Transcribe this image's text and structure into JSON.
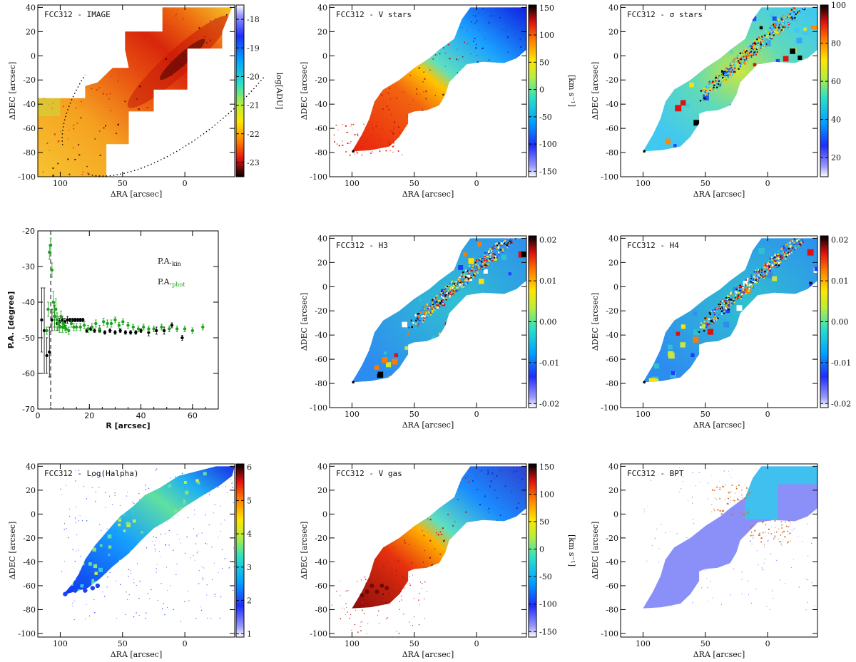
{
  "chart_data": [
    {
      "id": "image",
      "type": "heatmap",
      "title": "FCC312 - IMAGE",
      "xlabel": "ΔRA [arcsec]",
      "ylabel": "ΔDEC [arcsec]",
      "xlim": [
        118,
        -40
      ],
      "ylim": [
        -100,
        42
      ],
      "xticks": [
        "100",
        "50",
        "0"
      ],
      "xtickvals": [
        100,
        50,
        0
      ],
      "yticks": [
        "-100",
        "-80",
        "-60",
        "-40",
        "-20",
        "0",
        "20",
        "40"
      ],
      "ytickvals": [
        -100,
        -80,
        -60,
        -40,
        -20,
        0,
        20,
        40
      ],
      "colorbar": {
        "label": "log[ADU]",
        "range": [
          -23.5,
          -17.5
        ],
        "ticks": [
          "-18",
          "-19",
          "-20",
          "-21",
          "-22",
          "-23"
        ],
        "tickvals": [
          -18,
          -19,
          -20,
          -21,
          -22,
          -23
        ],
        "reverse": true,
        "cmap": "jet"
      }
    },
    {
      "id": "vstars",
      "type": "heatmap",
      "title": "FCC312 - V stars",
      "xlabel": "ΔRA [arcsec]",
      "ylabel": "ΔDEC [arcsec]",
      "xlim": [
        118,
        -40
      ],
      "ylim": [
        -100,
        42
      ],
      "xticks": [
        "100",
        "50",
        "0"
      ],
      "xtickvals": [
        100,
        50,
        0
      ],
      "yticks": [
        "-100",
        "-80",
        "-60",
        "-40",
        "-20",
        "0",
        "20",
        "40"
      ],
      "ytickvals": [
        -100,
        -80,
        -60,
        -40,
        -20,
        0,
        20,
        40
      ],
      "colorbar": {
        "label": "[km s⁻¹]",
        "range": [
          -160,
          155
        ],
        "ticks": [
          "150",
          "100",
          "50",
          "0",
          "-50",
          "-100",
          "-150"
        ],
        "tickvals": [
          150,
          100,
          50,
          0,
          -50,
          -100,
          -150
        ],
        "reverse": false,
        "cmap": "jet"
      }
    },
    {
      "id": "sigstars",
      "type": "heatmap",
      "title": "FCC312 - σ stars",
      "xlabel": "ΔRA [arcsec]",
      "ylabel": "ΔDEC [arcsec]",
      "xlim": [
        118,
        -40
      ],
      "ylim": [
        -100,
        42
      ],
      "xticks": [
        "100",
        "50",
        "0"
      ],
      "xtickvals": [
        100,
        50,
        0
      ],
      "yticks": [
        "-100",
        "-80",
        "-60",
        "-40",
        "-20",
        "0",
        "20",
        "40"
      ],
      "ytickvals": [
        -100,
        -80,
        -60,
        -40,
        -20,
        0,
        20,
        40
      ],
      "colorbar": {
        "label": "[km s⁻¹]",
        "range": [
          10,
          100
        ],
        "ticks": [
          "100",
          "80",
          "60",
          "40",
          "20"
        ],
        "tickvals": [
          100,
          80,
          60,
          40,
          20
        ],
        "reverse": false,
        "cmap": "jet"
      }
    },
    {
      "id": "pa",
      "type": "scatter",
      "xlabel": "R [arcsec]",
      "ylabel": "P.A. [degree]",
      "xlim": [
        0,
        70
      ],
      "ylim": [
        -70,
        -20
      ],
      "xticks": [
        "0",
        "20",
        "40",
        "60"
      ],
      "xtickvals": [
        0,
        20,
        40,
        60
      ],
      "yticks": [
        "-70",
        "-60",
        "-50",
        "-40",
        "-30",
        "-20"
      ],
      "ytickvals": [
        -70,
        -60,
        -50,
        -40,
        -30,
        -20
      ],
      "vline": 5,
      "legend": [
        {
          "label": "P.A.",
          "sub": "kin",
          "color": "#000000"
        },
        {
          "label": "P.A.",
          "sub": "phot",
          "color": "#19a319"
        }
      ],
      "series": [
        {
          "name": "P.A.kin",
          "color": "#000000",
          "x": [
            1.5,
            2.5,
            3.5,
            4.5,
            5.5,
            6.5,
            7.5,
            8.5,
            9.5,
            10.5,
            11.5,
            12.5,
            13.5,
            14.5,
            15.5,
            16.5,
            17.5,
            19,
            20.5,
            22,
            24,
            26,
            28,
            30,
            32,
            34,
            36,
            38,
            40,
            43,
            46,
            49,
            52,
            56
          ],
          "y": [
            -45,
            -48,
            -55,
            -54,
            -45,
            -44,
            -46,
            -45.5,
            -45,
            -45.5,
            -45,
            -45,
            -45,
            -45,
            -45,
            -45,
            -45,
            -48,
            -47.5,
            -48,
            -48,
            -48.5,
            -48,
            -48.5,
            -48,
            -48.5,
            -48.5,
            -48.5,
            -48,
            -48.5,
            -48,
            -48,
            -46.5,
            -50
          ],
          "err": [
            9,
            12,
            5,
            7,
            3,
            3,
            2,
            1,
            1,
            1,
            1,
            0.5,
            0.5,
            0.5,
            0.5,
            0.5,
            0.5,
            0.5,
            0.5,
            0.5,
            0.5,
            0.5,
            0.5,
            0.5,
            0.5,
            0.5,
            0.5,
            0.5,
            0.5,
            1,
            1,
            1,
            0.7,
            0.7
          ]
        },
        {
          "name": "P.A.phot",
          "color": "#19a319",
          "x": [
            3.5,
            4,
            4.5,
            5,
            5.5,
            6,
            6.5,
            7,
            7.5,
            8,
            8.5,
            9,
            9.5,
            10,
            10.5,
            11,
            12,
            13,
            14,
            15,
            16.5,
            18,
            19.5,
            21,
            22.5,
            24,
            25.5,
            27,
            28.5,
            30,
            31.5,
            33,
            35,
            37,
            39,
            41,
            43,
            45,
            48,
            51,
            54,
            57,
            60,
            64
          ],
          "y": [
            -48,
            -42,
            -26,
            -24,
            -31,
            -40,
            -44,
            -42,
            -45,
            -46,
            -47,
            -44,
            -47,
            -46,
            -47,
            -47.5,
            -48,
            -46,
            -47,
            -47,
            -47,
            -46.5,
            -47.5,
            -47,
            -46,
            -47.5,
            -45.5,
            -46,
            -46,
            -45,
            -46.5,
            -45.5,
            -46.5,
            -47,
            -47.5,
            -47,
            -47.5,
            -47.5,
            -47,
            -47.5,
            -47.5,
            -47.5,
            -48,
            -47
          ],
          "err": [
            1,
            2,
            2,
            2,
            2,
            3,
            4,
            3,
            2,
            2,
            1.5,
            1.5,
            1.5,
            1.5,
            1,
            1,
            1,
            1,
            1,
            1,
            1,
            1,
            1,
            1,
            1,
            1,
            1,
            1,
            1,
            0.8,
            0.8,
            0.8,
            0.8,
            0.8,
            0.8,
            0.8,
            0.8,
            0.8,
            0.8,
            0.8,
            0.8,
            0.8,
            0.8,
            0.8
          ]
        }
      ]
    },
    {
      "id": "h3",
      "type": "heatmap",
      "title": "FCC312 - H3",
      "xlabel": "ΔRA [arcsec]",
      "ylabel": "ΔDEC [arcsec]",
      "xlim": [
        118,
        -40
      ],
      "ylim": [
        -100,
        42
      ],
      "xticks": [
        "100",
        "50",
        "0"
      ],
      "xtickvals": [
        100,
        50,
        0
      ],
      "yticks": [
        "-100",
        "-80",
        "-60",
        "-40",
        "-20",
        "0",
        "20",
        "40"
      ],
      "ytickvals": [
        -100,
        -80,
        -60,
        -40,
        -20,
        0,
        20,
        40
      ],
      "colorbar": {
        "label": "",
        "range": [
          -0.021,
          0.021
        ],
        "ticks": [
          "0.02",
          "0.01",
          "0.00",
          "-0.01",
          "-0.02"
        ],
        "tickvals": [
          0.02,
          0.01,
          0,
          -0.01,
          -0.02
        ],
        "reverse": false,
        "cmap": "jet"
      }
    },
    {
      "id": "h4",
      "type": "heatmap",
      "title": "FCC312 - H4",
      "xlabel": "ΔRA [arcsec]",
      "ylabel": "ΔDEC [arcsec]",
      "xlim": [
        118,
        -40
      ],
      "ylim": [
        -100,
        42
      ],
      "xticks": [
        "100",
        "50",
        "0"
      ],
      "xtickvals": [
        100,
        50,
        0
      ],
      "yticks": [
        "-100",
        "-80",
        "-60",
        "-40",
        "-20",
        "0",
        "20",
        "40"
      ],
      "ytickvals": [
        -100,
        -80,
        -60,
        -40,
        -20,
        0,
        20,
        40
      ],
      "colorbar": {
        "label": "",
        "range": [
          -0.021,
          0.021
        ],
        "ticks": [
          "0.02",
          "0.01",
          "0.00",
          "-0.01",
          "-0.02"
        ],
        "tickvals": [
          0.02,
          0.01,
          0,
          -0.01,
          -0.02
        ],
        "reverse": false,
        "cmap": "jet"
      }
    },
    {
      "id": "halpha",
      "type": "heatmap",
      "title": "FCC312 - Log(Halpha)",
      "xlabel": "ΔRA [arcsec]",
      "ylabel": "ΔDEC [arcsec]",
      "xlim": [
        118,
        -40
      ],
      "ylim": [
        -103,
        42
      ],
      "xticks": [
        "100",
        "50",
        "0"
      ],
      "xtickvals": [
        100,
        50,
        0
      ],
      "yticks": [
        "-100",
        "-80",
        "-60",
        "-40",
        "-20",
        "0",
        "20",
        "40"
      ],
      "ytickvals": [
        -100,
        -80,
        -60,
        -40,
        -20,
        0,
        20,
        40
      ],
      "colorbar": {
        "label": "",
        "range": [
          0.9,
          6.1
        ],
        "ticks": [
          "6",
          "5",
          "4",
          "3",
          "2",
          "1"
        ],
        "tickvals": [
          6,
          5,
          4,
          3,
          2,
          1
        ],
        "reverse": false,
        "cmap": "jet"
      }
    },
    {
      "id": "vgas",
      "type": "heatmap",
      "title": "FCC312 - V gas",
      "xlabel": "ΔRA [arcsec]",
      "ylabel": "ΔDEC [arcsec]",
      "xlim": [
        118,
        -40
      ],
      "ylim": [
        -103,
        42
      ],
      "xticks": [
        "100",
        "50",
        "0"
      ],
      "xtickvals": [
        100,
        50,
        0
      ],
      "yticks": [
        "-100",
        "-80",
        "-60",
        "-40",
        "-20",
        "0",
        "20",
        "40"
      ],
      "ytickvals": [
        -100,
        -80,
        -60,
        -40,
        -20,
        0,
        20,
        40
      ],
      "colorbar": {
        "label": "[km s⁻¹]",
        "range": [
          -160,
          155
        ],
        "ticks": [
          "150",
          "100",
          "50",
          "0",
          "-50",
          "-100",
          "-150"
        ],
        "tickvals": [
          150,
          100,
          50,
          0,
          -50,
          -100,
          -150
        ],
        "reverse": false,
        "cmap": "jet"
      }
    },
    {
      "id": "bpt",
      "type": "heatmap",
      "title": "FCC312 - BPT",
      "xlabel": "ΔRA [arcsec]",
      "ylabel": "ΔDEC [arcsec]",
      "xlim": [
        118,
        -40
      ],
      "ylim": [
        -103,
        42
      ],
      "xticks": [
        "100",
        "50",
        "0"
      ],
      "xtickvals": [
        100,
        50,
        0
      ],
      "yticks": [
        "-100",
        "-80",
        "-60",
        "-40",
        "-20",
        "0",
        "20",
        "40"
      ],
      "ytickvals": [
        -100,
        -80,
        -60,
        -40,
        -20,
        0,
        20,
        40
      ]
    }
  ]
}
